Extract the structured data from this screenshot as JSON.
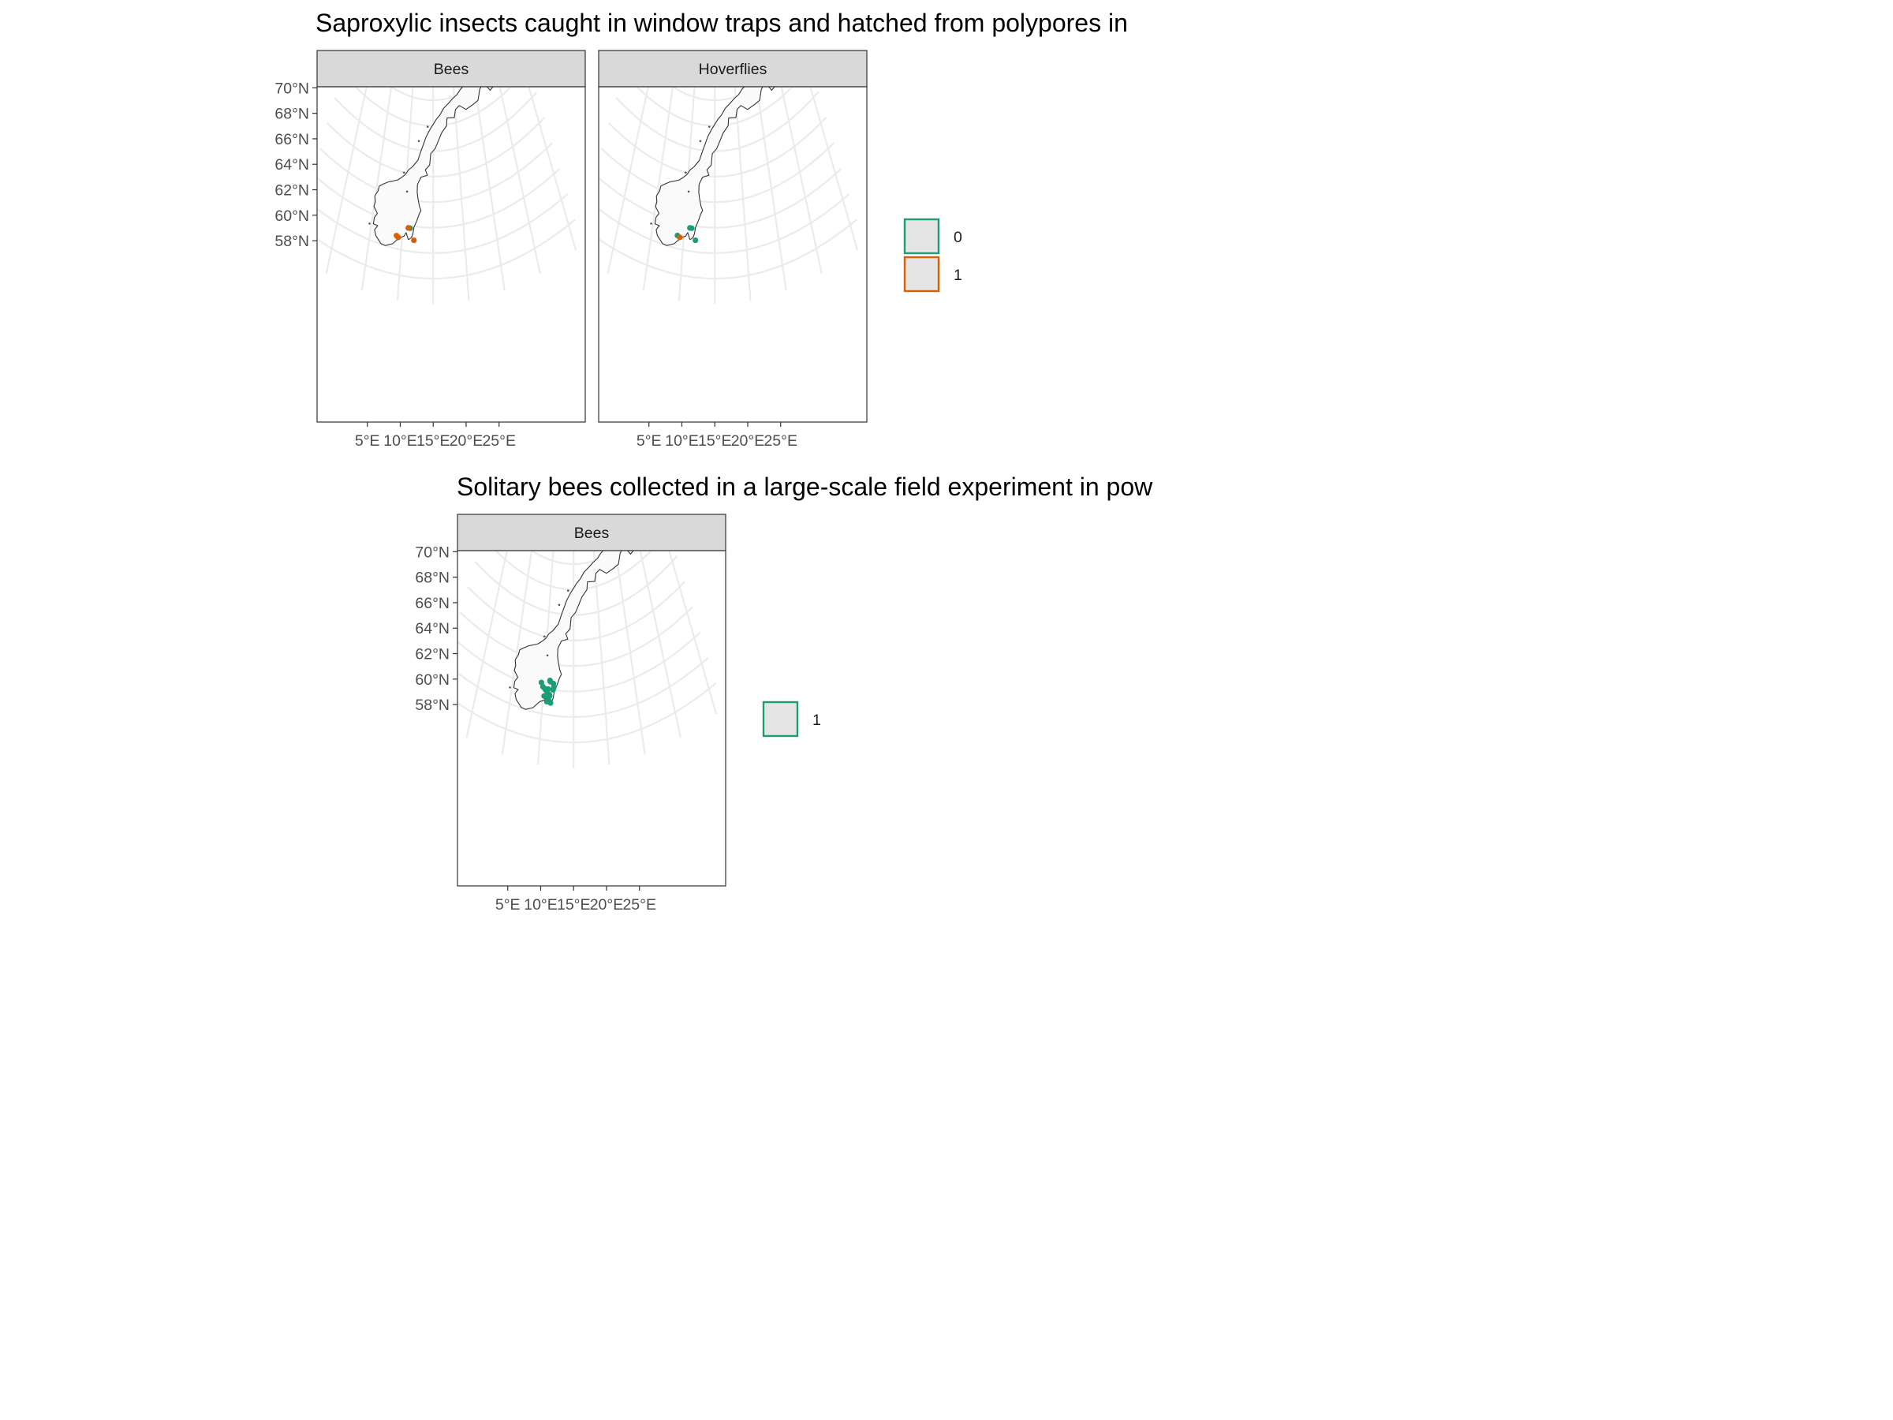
{
  "figure": {
    "sections": [
      {
        "title": "Saproxylic insects caught in window traps and hatched from polypores in",
        "panels": [
          {
            "strip": "Bees",
            "points": [
              {
                "lon": 11.2,
                "lat": 59.8,
                "group": "0"
              },
              {
                "lon": 10.9,
                "lat": 59.8,
                "group": "1"
              },
              {
                "lon": 9.1,
                "lat": 59.0,
                "group": "1"
              },
              {
                "lon": 9.4,
                "lat": 58.9,
                "group": "1"
              },
              {
                "lon": 11.9,
                "lat": 58.9,
                "group": "1"
              }
            ]
          },
          {
            "strip": "Hoverflies",
            "points": [
              {
                "lon": 10.9,
                "lat": 59.8,
                "group": "0"
              },
              {
                "lon": 11.2,
                "lat": 59.8,
                "group": "0"
              },
              {
                "lon": 9.0,
                "lat": 59.0,
                "group": "0"
              },
              {
                "lon": 11.9,
                "lat": 58.9,
                "group": "0"
              },
              {
                "lon": 9.4,
                "lat": 58.9,
                "group": "1"
              }
            ]
          }
        ],
        "legend": [
          {
            "label": "0",
            "color": "#1b9e77"
          },
          {
            "label": "1",
            "color": "#d95f02"
          }
        ]
      },
      {
        "title": "Solitary bees collected in a large-scale field experiment in pow",
        "panels": [
          {
            "strip": "Bees",
            "points": [
              {
                "lon": 9.6,
                "lat": 60.4,
                "group": "1"
              },
              {
                "lon": 9.9,
                "lat": 60.1,
                "group": "1"
              },
              {
                "lon": 10.2,
                "lat": 60.0,
                "group": "1"
              },
              {
                "lon": 10.4,
                "lat": 59.9,
                "group": "1"
              },
              {
                "lon": 10.8,
                "lat": 60.0,
                "group": "1"
              },
              {
                "lon": 10.6,
                "lat": 59.8,
                "group": "1"
              },
              {
                "lon": 11.0,
                "lat": 59.6,
                "group": "1"
              },
              {
                "lon": 10.9,
                "lat": 59.3,
                "group": "1"
              },
              {
                "lon": 11.1,
                "lat": 59.5,
                "group": "1"
              },
              {
                "lon": 10.2,
                "lat": 59.4,
                "group": "1"
              },
              {
                "lon": 11.0,
                "lat": 60.7,
                "group": "1"
              },
              {
                "lon": 11.1,
                "lat": 60.6,
                "group": "1"
              },
              {
                "lon": 11.6,
                "lat": 60.5,
                "group": "1"
              },
              {
                "lon": 11.6,
                "lat": 60.0,
                "group": "1"
              },
              {
                "lon": 11.7,
                "lat": 60.2,
                "group": "1"
              },
              {
                "lon": 10.7,
                "lat": 59.0,
                "group": "1"
              },
              {
                "lon": 11.3,
                "lat": 58.95,
                "group": "1"
              },
              {
                "lon": 11.0,
                "lat": 59.1,
                "group": "1"
              }
            ]
          }
        ],
        "legend": [
          {
            "label": "1",
            "color": "#1b9e77"
          }
        ]
      }
    ],
    "lat_ticks": [
      "70°N",
      "68°N",
      "66°N",
      "64°N",
      "62°N",
      "60°N",
      "58°N"
    ],
    "lon_ticks": [
      "5°E",
      "10°E",
      "15°E",
      "20°E",
      "25°E"
    ],
    "colors": {
      "group_0": "#1b9e77",
      "group_1": "#d95f02",
      "strip_fill": "#d9d9d9",
      "land_fill": "#fafafa",
      "legend_key_fill": "#e5e5e5",
      "graticule": "#ebebeb"
    }
  }
}
